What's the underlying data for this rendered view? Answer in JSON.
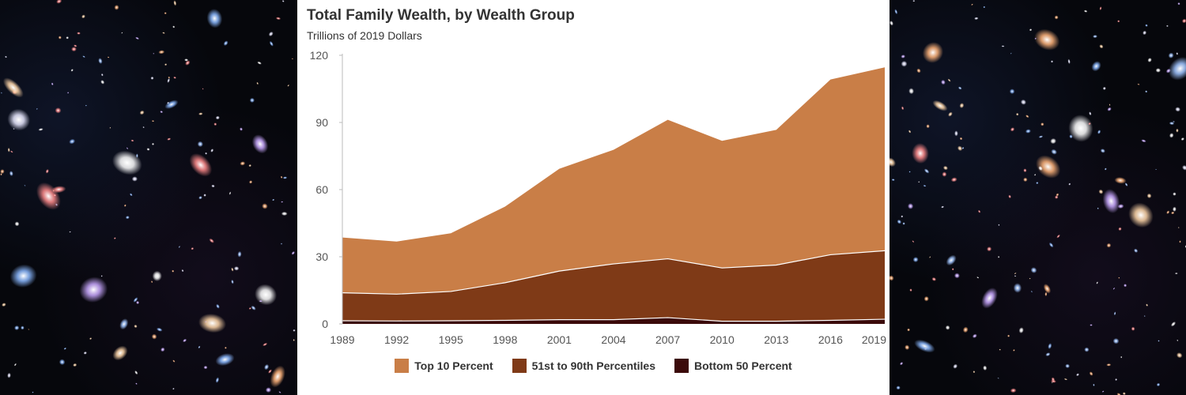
{
  "chart_data": {
    "type": "area",
    "stacked": true,
    "title": "Total Family Wealth, by Wealth Group",
    "subtitle": "Trillions of 2019 Dollars",
    "xlabel": "",
    "ylabel": "",
    "x": [
      "1989",
      "1992",
      "1995",
      "1998",
      "2001",
      "2004",
      "2007",
      "2010",
      "2013",
      "2016",
      "2019"
    ],
    "ylim": [
      0,
      120
    ],
    "yticks": [
      0,
      30,
      60,
      90,
      120
    ],
    "grid": false,
    "legend": "bottom-center",
    "series": [
      {
        "name": "Bottom 50 Percent",
        "color": "#3b0a0a",
        "values": [
          1.4,
          1.3,
          1.4,
          1.6,
          1.9,
          1.9,
          2.8,
          1.2,
          1.2,
          1.6,
          2.1
        ]
      },
      {
        "name": "51st to 90th Percentiles",
        "color": "#7f3a17",
        "values": [
          12.5,
          12.0,
          13.1,
          16.8,
          21.7,
          24.9,
          26.3,
          23.8,
          25.1,
          29.3,
          30.6
        ]
      },
      {
        "name": "Top 10 Percent",
        "color": "#c97e47",
        "values": [
          24.7,
          23.5,
          26.0,
          34.0,
          45.7,
          51.0,
          62.1,
          56.8,
          60.4,
          78.3,
          81.9
        ]
      }
    ],
    "legend_order": [
      "Top 10 Percent",
      "51st to 90th Percentiles",
      "Bottom 50 Percent"
    ]
  },
  "decor": {
    "left_panel": "galaxy-field-image",
    "right_panel": "galaxy-field-image"
  }
}
